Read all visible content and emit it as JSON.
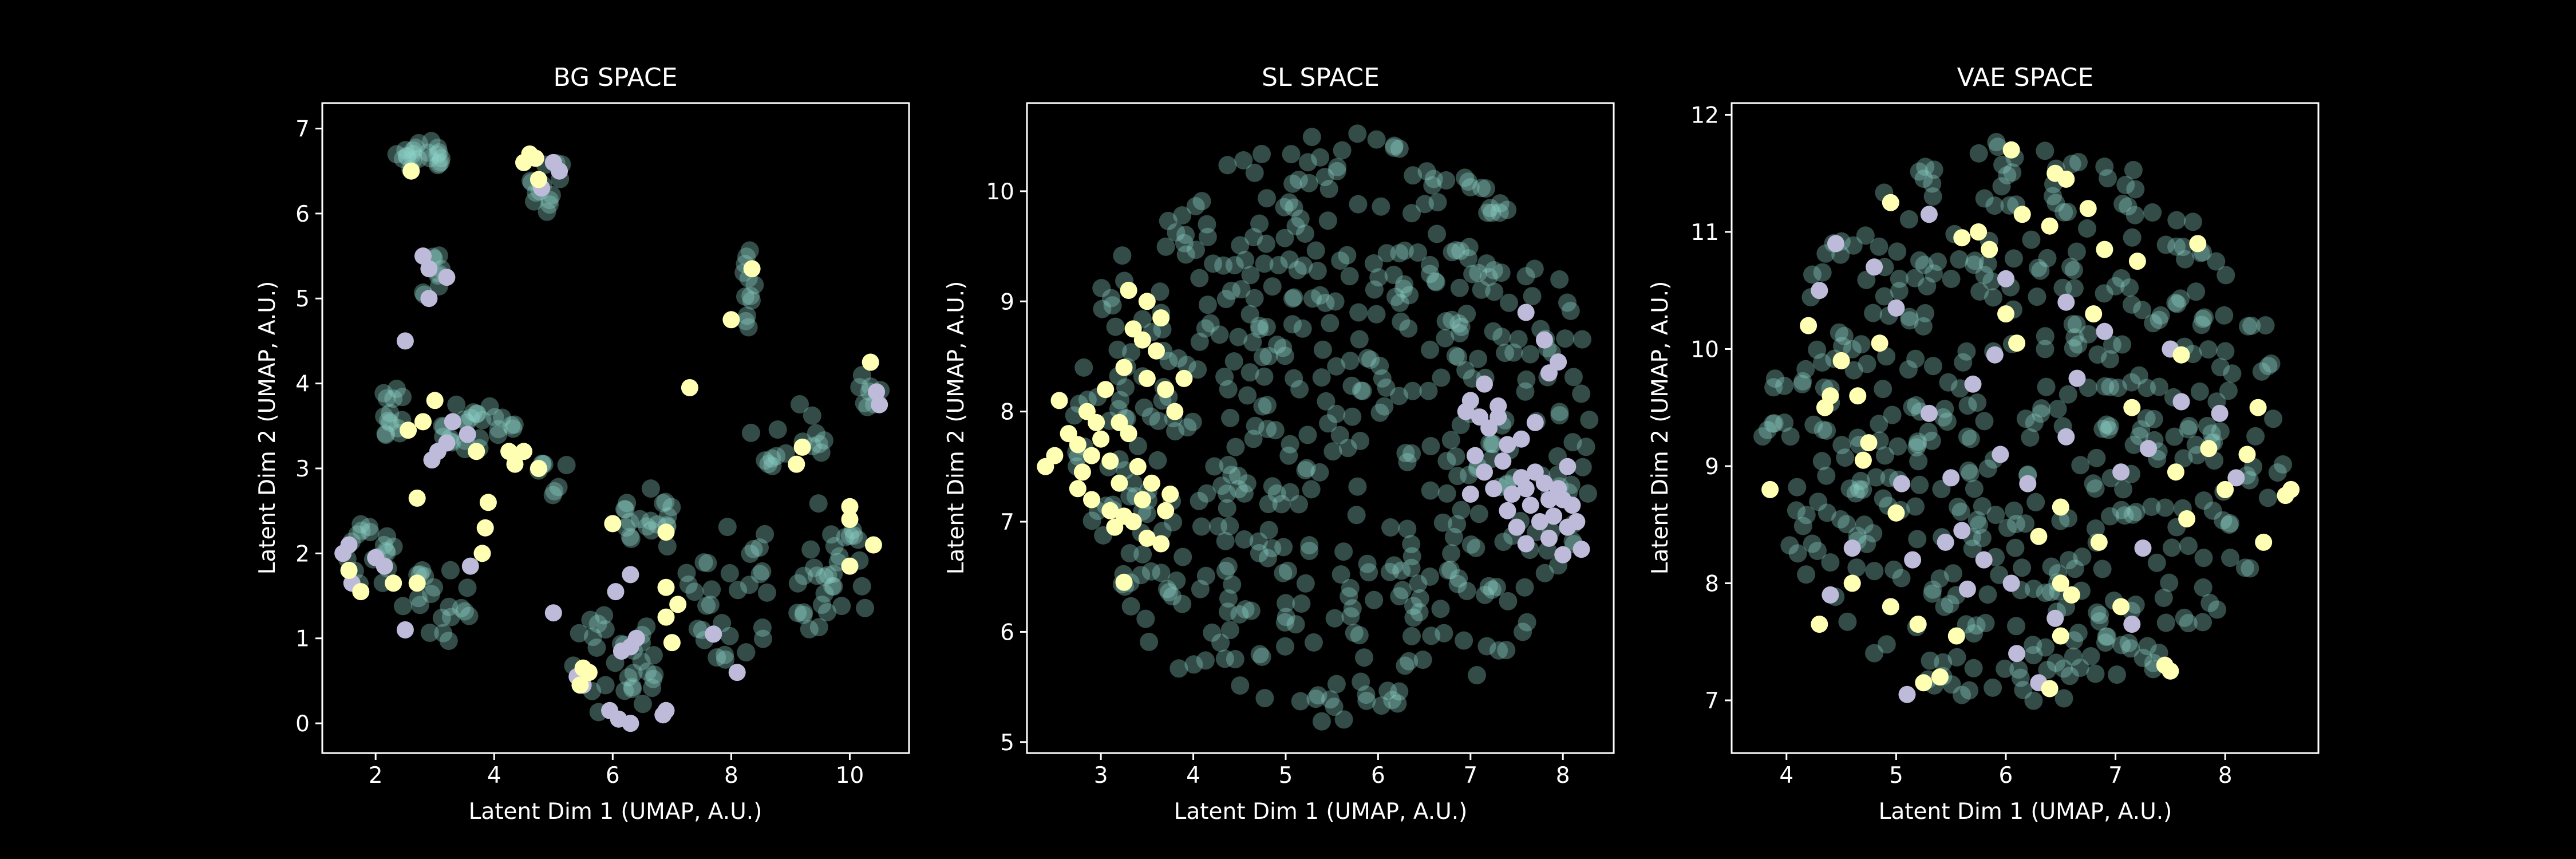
{
  "colors": {
    "background": "#000000",
    "foreground": "#ffffff",
    "bg": "#8dd3c7",
    "class_a": "#ffffb3",
    "class_b": "#bebada"
  },
  "chart_data": [
    {
      "type": "scatter",
      "title": "BG SPACE",
      "xlabel": "Latent Dim 1 (UMAP, A.U.)",
      "ylabel": "Latent Dim 2 (UMAP, A.U.)",
      "xlim": [
        1.1,
        11.0
      ],
      "ylim": [
        -0.35,
        7.3
      ],
      "xticks": [
        2,
        4,
        6,
        8,
        10
      ],
      "yticks": [
        0,
        1,
        2,
        3,
        4,
        5,
        6,
        7
      ],
      "grid": false,
      "background_clusters": [
        {
          "cx": 2.75,
          "cy": 6.7,
          "rx": 0.4,
          "ry": 0.2,
          "n": 22
        },
        {
          "cx": 4.95,
          "cy": 6.3,
          "rx": 0.35,
          "ry": 0.35,
          "n": 14
        },
        {
          "cx": 2.95,
          "cy": 5.3,
          "rx": 0.2,
          "ry": 0.35,
          "n": 9
        },
        {
          "cx": 8.3,
          "cy": 5.1,
          "rx": 0.1,
          "ry": 0.5,
          "n": 12
        },
        {
          "cx": 2.3,
          "cy": 3.6,
          "rx": 0.25,
          "ry": 0.4,
          "n": 14
        },
        {
          "cx": 3.7,
          "cy": 3.5,
          "rx": 0.7,
          "ry": 0.3,
          "n": 26
        },
        {
          "cx": 1.9,
          "cy": 2.0,
          "rx": 0.45,
          "ry": 0.4,
          "n": 18
        },
        {
          "cx": 3.0,
          "cy": 1.4,
          "rx": 0.6,
          "ry": 0.5,
          "n": 20
        },
        {
          "cx": 5.0,
          "cy": 2.9,
          "rx": 0.3,
          "ry": 0.3,
          "n": 8
        },
        {
          "cx": 6.6,
          "cy": 2.4,
          "rx": 0.5,
          "ry": 0.45,
          "n": 20
        },
        {
          "cx": 6.1,
          "cy": 0.7,
          "rx": 0.8,
          "ry": 0.7,
          "n": 30
        },
        {
          "cx": 8.0,
          "cy": 1.6,
          "rx": 0.8,
          "ry": 0.9,
          "n": 30
        },
        {
          "cx": 9.6,
          "cy": 1.8,
          "rx": 0.8,
          "ry": 0.8,
          "n": 32
        },
        {
          "cx": 9.0,
          "cy": 3.4,
          "rx": 0.9,
          "ry": 0.4,
          "n": 16
        },
        {
          "cx": 10.3,
          "cy": 3.9,
          "rx": 0.25,
          "ry": 0.25,
          "n": 8
        }
      ],
      "class_a": [
        [
          2.6,
          6.5
        ],
        [
          4.6,
          6.7
        ],
        [
          4.7,
          6.65
        ],
        [
          4.5,
          6.6
        ],
        [
          4.75,
          6.4
        ],
        [
          8.35,
          5.35
        ],
        [
          8.0,
          4.75
        ],
        [
          7.3,
          3.95
        ],
        [
          10.35,
          4.25
        ],
        [
          3.0,
          3.8
        ],
        [
          2.8,
          3.55
        ],
        [
          2.55,
          3.45
        ],
        [
          3.7,
          3.2
        ],
        [
          4.25,
          3.2
        ],
        [
          4.5,
          3.2
        ],
        [
          4.35,
          3.05
        ],
        [
          4.75,
          3.0
        ],
        [
          9.2,
          3.25
        ],
        [
          9.1,
          3.05
        ],
        [
          2.7,
          2.65
        ],
        [
          3.9,
          2.6
        ],
        [
          3.85,
          2.3
        ],
        [
          10.0,
          2.55
        ],
        [
          10.0,
          2.4
        ],
        [
          10.4,
          2.1
        ],
        [
          1.55,
          1.8
        ],
        [
          1.75,
          1.55
        ],
        [
          2.3,
          1.65
        ],
        [
          2.7,
          1.65
        ],
        [
          3.8,
          2.0
        ],
        [
          10.0,
          1.85
        ],
        [
          6.0,
          2.35
        ],
        [
          6.9,
          2.25
        ],
        [
          6.9,
          1.6
        ],
        [
          7.1,
          1.4
        ],
        [
          6.9,
          1.25
        ],
        [
          7.0,
          0.95
        ],
        [
          5.5,
          0.65
        ],
        [
          5.6,
          0.6
        ],
        [
          5.45,
          0.45
        ]
      ],
      "class_b": [
        [
          5.0,
          6.6
        ],
        [
          5.1,
          6.5
        ],
        [
          4.8,
          6.3
        ],
        [
          2.8,
          5.5
        ],
        [
          2.9,
          5.35
        ],
        [
          3.2,
          5.25
        ],
        [
          2.9,
          5.0
        ],
        [
          2.5,
          4.5
        ],
        [
          3.3,
          3.55
        ],
        [
          3.55,
          3.4
        ],
        [
          3.2,
          3.3
        ],
        [
          3.05,
          3.2
        ],
        [
          2.95,
          3.1
        ],
        [
          10.45,
          3.9
        ],
        [
          10.5,
          3.75
        ],
        [
          1.55,
          2.1
        ],
        [
          1.45,
          2.0
        ],
        [
          2.0,
          1.95
        ],
        [
          2.15,
          1.85
        ],
        [
          1.6,
          1.65
        ],
        [
          2.5,
          1.1
        ],
        [
          3.6,
          1.85
        ],
        [
          6.3,
          1.75
        ],
        [
          6.05,
          1.55
        ],
        [
          5.0,
          1.3
        ],
        [
          6.4,
          1.0
        ],
        [
          6.3,
          0.9
        ],
        [
          6.15,
          0.85
        ],
        [
          7.7,
          1.05
        ],
        [
          8.1,
          0.6
        ],
        [
          5.4,
          0.55
        ],
        [
          5.5,
          0.45
        ],
        [
          5.95,
          0.15
        ],
        [
          6.1,
          0.05
        ],
        [
          6.3,
          0.0
        ],
        [
          6.85,
          0.1
        ],
        [
          6.9,
          0.15
        ]
      ]
    },
    {
      "type": "scatter",
      "title": "SL SPACE",
      "xlabel": "Latent Dim 1 (UMAP, A.U.)",
      "ylabel": "Latent Dim 2 (UMAP, A.U.)",
      "xlim": [
        2.2,
        8.55
      ],
      "ylim": [
        4.9,
        10.8
      ],
      "xticks": [
        3,
        4,
        5,
        6,
        7,
        8
      ],
      "yticks": [
        5,
        6,
        7,
        8,
        9,
        10
      ],
      "grid": false,
      "background_disc": {
        "cx": 5.5,
        "cy": 7.85,
        "rx": 2.85,
        "ry": 2.7,
        "n": 520
      },
      "class_a": [
        [
          2.4,
          7.5
        ],
        [
          2.55,
          8.1
        ],
        [
          2.5,
          7.6
        ],
        [
          2.65,
          7.8
        ],
        [
          2.75,
          7.7
        ],
        [
          2.8,
          7.45
        ],
        [
          2.9,
          7.6
        ],
        [
          2.95,
          7.9
        ],
        [
          2.85,
          8.0
        ],
        [
          3.0,
          7.75
        ],
        [
          2.75,
          7.3
        ],
        [
          2.9,
          7.2
        ],
        [
          3.1,
          7.55
        ],
        [
          3.05,
          8.2
        ],
        [
          3.1,
          7.1
        ],
        [
          3.15,
          6.95
        ],
        [
          3.2,
          7.35
        ],
        [
          3.25,
          7.05
        ],
        [
          3.3,
          7.8
        ],
        [
          3.35,
          7.0
        ],
        [
          3.4,
          7.5
        ],
        [
          3.45,
          7.2
        ],
        [
          3.5,
          6.85
        ],
        [
          3.55,
          7.35
        ],
        [
          3.65,
          6.8
        ],
        [
          3.7,
          7.1
        ],
        [
          3.75,
          7.25
        ],
        [
          3.25,
          8.4
        ],
        [
          3.35,
          8.75
        ],
        [
          3.45,
          8.65
        ],
        [
          3.5,
          8.3
        ],
        [
          3.6,
          8.55
        ],
        [
          3.7,
          8.2
        ],
        [
          3.8,
          8.0
        ],
        [
          3.5,
          9.0
        ],
        [
          3.65,
          8.85
        ],
        [
          3.3,
          9.1
        ],
        [
          3.25,
          6.45
        ],
        [
          3.9,
          8.3
        ],
        [
          3.2,
          7.9
        ]
      ],
      "class_b": [
        [
          7.0,
          8.1
        ],
        [
          7.1,
          7.95
        ],
        [
          7.15,
          8.25
        ],
        [
          7.2,
          7.85
        ],
        [
          7.3,
          8.05
        ],
        [
          7.05,
          7.6
        ],
        [
          7.15,
          7.45
        ],
        [
          7.25,
          7.3
        ],
        [
          7.0,
          7.25
        ],
        [
          7.35,
          7.55
        ],
        [
          7.45,
          7.25
        ],
        [
          7.4,
          7.1
        ],
        [
          7.55,
          7.4
        ],
        [
          7.6,
          7.3
        ],
        [
          7.65,
          7.15
        ],
        [
          7.7,
          7.45
        ],
        [
          7.75,
          7.0
        ],
        [
          7.8,
          7.35
        ],
        [
          7.85,
          7.2
        ],
        [
          7.9,
          7.05
        ],
        [
          7.95,
          7.3
        ],
        [
          8.0,
          7.2
        ],
        [
          8.05,
          6.95
        ],
        [
          8.1,
          7.15
        ],
        [
          8.15,
          7.0
        ],
        [
          7.5,
          6.95
        ],
        [
          7.6,
          6.8
        ],
        [
          7.85,
          6.85
        ],
        [
          8.0,
          6.7
        ],
        [
          8.2,
          6.75
        ],
        [
          7.7,
          7.9
        ],
        [
          7.95,
          8.45
        ],
        [
          7.85,
          8.35
        ],
        [
          7.8,
          8.65
        ],
        [
          7.6,
          8.9
        ],
        [
          7.55,
          7.75
        ],
        [
          7.4,
          7.7
        ],
        [
          7.3,
          7.95
        ],
        [
          6.95,
          8.0
        ],
        [
          8.05,
          7.5
        ]
      ]
    },
    {
      "type": "scatter",
      "title": "VAE SPACE",
      "xlabel": "Latent Dim 1 (UMAP, A.U.)",
      "ylabel": "Latent Dim 2 (UMAP, A.U.)",
      "xlim": [
        3.5,
        8.85
      ],
      "ylim": [
        6.55,
        12.1
      ],
      "xticks": [
        4,
        5,
        6,
        7,
        8
      ],
      "yticks": [
        7,
        8,
        9,
        10,
        11,
        12
      ],
      "grid": false,
      "background_disc": {
        "cx": 6.15,
        "cy": 9.35,
        "rx": 2.4,
        "ry": 2.45,
        "n": 450
      },
      "class_a": [
        [
          3.85,
          8.8
        ],
        [
          4.2,
          10.2
        ],
        [
          4.3,
          7.65
        ],
        [
          4.35,
          9.5
        ],
        [
          4.5,
          9.9
        ],
        [
          4.6,
          8.0
        ],
        [
          4.65,
          9.6
        ],
        [
          4.7,
          9.05
        ],
        [
          4.75,
          9.2
        ],
        [
          4.85,
          10.05
        ],
        [
          4.95,
          11.25
        ],
        [
          4.95,
          7.8
        ],
        [
          5.0,
          8.6
        ],
        [
          5.2,
          7.65
        ],
        [
          5.25,
          7.15
        ],
        [
          5.4,
          7.2
        ],
        [
          5.55,
          7.55
        ],
        [
          5.6,
          10.95
        ],
        [
          5.75,
          11.0
        ],
        [
          5.85,
          10.85
        ],
        [
          6.0,
          10.3
        ],
        [
          6.05,
          11.7
        ],
        [
          6.1,
          10.05
        ],
        [
          6.15,
          11.15
        ],
        [
          6.3,
          8.4
        ],
        [
          6.4,
          11.05
        ],
        [
          6.45,
          11.5
        ],
        [
          6.5,
          8.65
        ],
        [
          6.5,
          8.0
        ],
        [
          6.5,
          7.55
        ],
        [
          6.55,
          11.45
        ],
        [
          6.6,
          7.9
        ],
        [
          6.75,
          11.2
        ],
        [
          6.8,
          10.3
        ],
        [
          6.85,
          8.35
        ],
        [
          6.9,
          10.85
        ],
        [
          7.05,
          7.8
        ],
        [
          7.15,
          9.5
        ],
        [
          7.2,
          10.75
        ],
        [
          7.45,
          7.3
        ],
        [
          7.5,
          7.25
        ],
        [
          7.55,
          8.95
        ],
        [
          7.6,
          9.95
        ],
        [
          7.65,
          8.55
        ],
        [
          7.75,
          10.9
        ],
        [
          7.85,
          9.15
        ],
        [
          8.0,
          8.8
        ],
        [
          8.2,
          9.1
        ],
        [
          8.3,
          9.5
        ],
        [
          8.35,
          8.35
        ],
        [
          8.55,
          8.75
        ],
        [
          8.6,
          8.8
        ],
        [
          6.4,
          7.1
        ],
        [
          4.4,
          9.6
        ]
      ],
      "class_b": [
        [
          4.3,
          10.5
        ],
        [
          4.45,
          10.9
        ],
        [
          4.6,
          8.3
        ],
        [
          4.8,
          10.7
        ],
        [
          5.0,
          10.35
        ],
        [
          5.05,
          8.85
        ],
        [
          5.15,
          8.2
        ],
        [
          5.3,
          11.15
        ],
        [
          5.3,
          9.45
        ],
        [
          5.5,
          8.9
        ],
        [
          5.6,
          8.45
        ],
        [
          5.65,
          7.95
        ],
        [
          5.7,
          9.7
        ],
        [
          5.8,
          8.2
        ],
        [
          5.9,
          9.95
        ],
        [
          5.95,
          9.1
        ],
        [
          6.0,
          10.6
        ],
        [
          6.05,
          8.0
        ],
        [
          6.1,
          7.4
        ],
        [
          6.3,
          7.15
        ],
        [
          6.45,
          7.7
        ],
        [
          6.55,
          10.4
        ],
        [
          6.65,
          9.75
        ],
        [
          6.9,
          10.15
        ],
        [
          7.05,
          8.95
        ],
        [
          7.15,
          7.65
        ],
        [
          7.25,
          8.3
        ],
        [
          7.5,
          10.0
        ],
        [
          7.6,
          9.55
        ],
        [
          7.95,
          9.45
        ],
        [
          8.1,
          8.9
        ],
        [
          7.3,
          9.15
        ],
        [
          6.55,
          9.25
        ],
        [
          5.1,
          7.05
        ],
        [
          4.4,
          7.9
        ],
        [
          6.2,
          8.85
        ],
        [
          5.45,
          8.35
        ]
      ]
    }
  ]
}
